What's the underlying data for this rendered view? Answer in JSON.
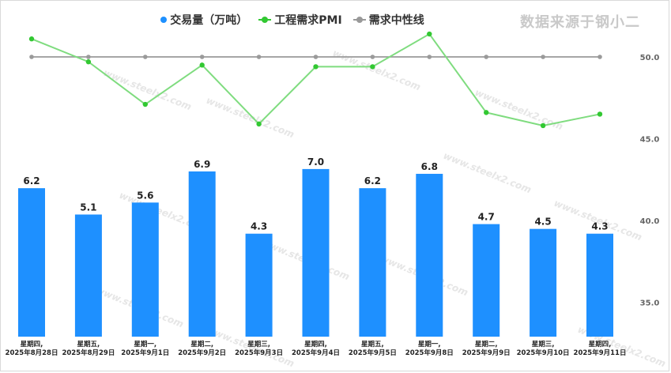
{
  "watermark_text": "数据来源于钢小二",
  "watermark_site": "www.steelx2.com",
  "chart_data": {
    "type": "bar+line",
    "legend": [
      {
        "name": "交易量（万吨）",
        "color": "#1e90ff",
        "kind": "dot"
      },
      {
        "name": "工程需求PMI",
        "color": "#32c832",
        "kind": "line"
      },
      {
        "name": "需求中性线",
        "color": "#999999",
        "kind": "line"
      }
    ],
    "categories": [
      [
        "星期四,",
        "2025年8月28日"
      ],
      [
        "星期五,",
        "2025年8月29日"
      ],
      [
        "星期一,",
        "2025年9月1日"
      ],
      [
        "星期二,",
        "2025年9月2日"
      ],
      [
        "星期三,",
        "2025年9月3日"
      ],
      [
        "星期四,",
        "2025年9月4日"
      ],
      [
        "星期五,",
        "2025年9月5日"
      ],
      [
        "星期一,",
        "2025年9月8日"
      ],
      [
        "星期二,",
        "2025年9月9日"
      ],
      [
        "星期三,",
        "2025年9月10日"
      ],
      [
        "星期四,",
        "2025年9月11日"
      ]
    ],
    "series": [
      {
        "name": "交易量（万吨）",
        "type": "bar",
        "color": "#1e90ff",
        "values": [
          6.2,
          5.1,
          5.6,
          6.9,
          4.3,
          7.0,
          6.2,
          6.8,
          4.7,
          4.5,
          4.3
        ],
        "labels": [
          "6.2",
          "5.1",
          "5.6",
          "6.9",
          "4.3",
          "7.0",
          "6.2",
          "6.8",
          "4.7",
          "4.5",
          "4.3"
        ]
      },
      {
        "name": "工程需求PMI",
        "type": "line",
        "color": "#7fdc7f",
        "marker_color": "#32c832",
        "values": [
          51.1,
          49.7,
          47.1,
          49.5,
          45.9,
          49.4,
          49.4,
          51.4,
          46.6,
          45.8,
          46.5
        ]
      },
      {
        "name": "需求中性线",
        "type": "line",
        "color": "#9a9a9a",
        "values": [
          50,
          50,
          50,
          50,
          50,
          50,
          50,
          50,
          50,
          50,
          50
        ]
      }
    ],
    "y_right": {
      "ticks": [
        "50.0",
        "45.0",
        "40.0",
        "35.0"
      ],
      "values": [
        50,
        45,
        40,
        35
      ],
      "range": [
        32,
        53
      ]
    },
    "bar_range": [
      0,
      8.5
    ]
  }
}
